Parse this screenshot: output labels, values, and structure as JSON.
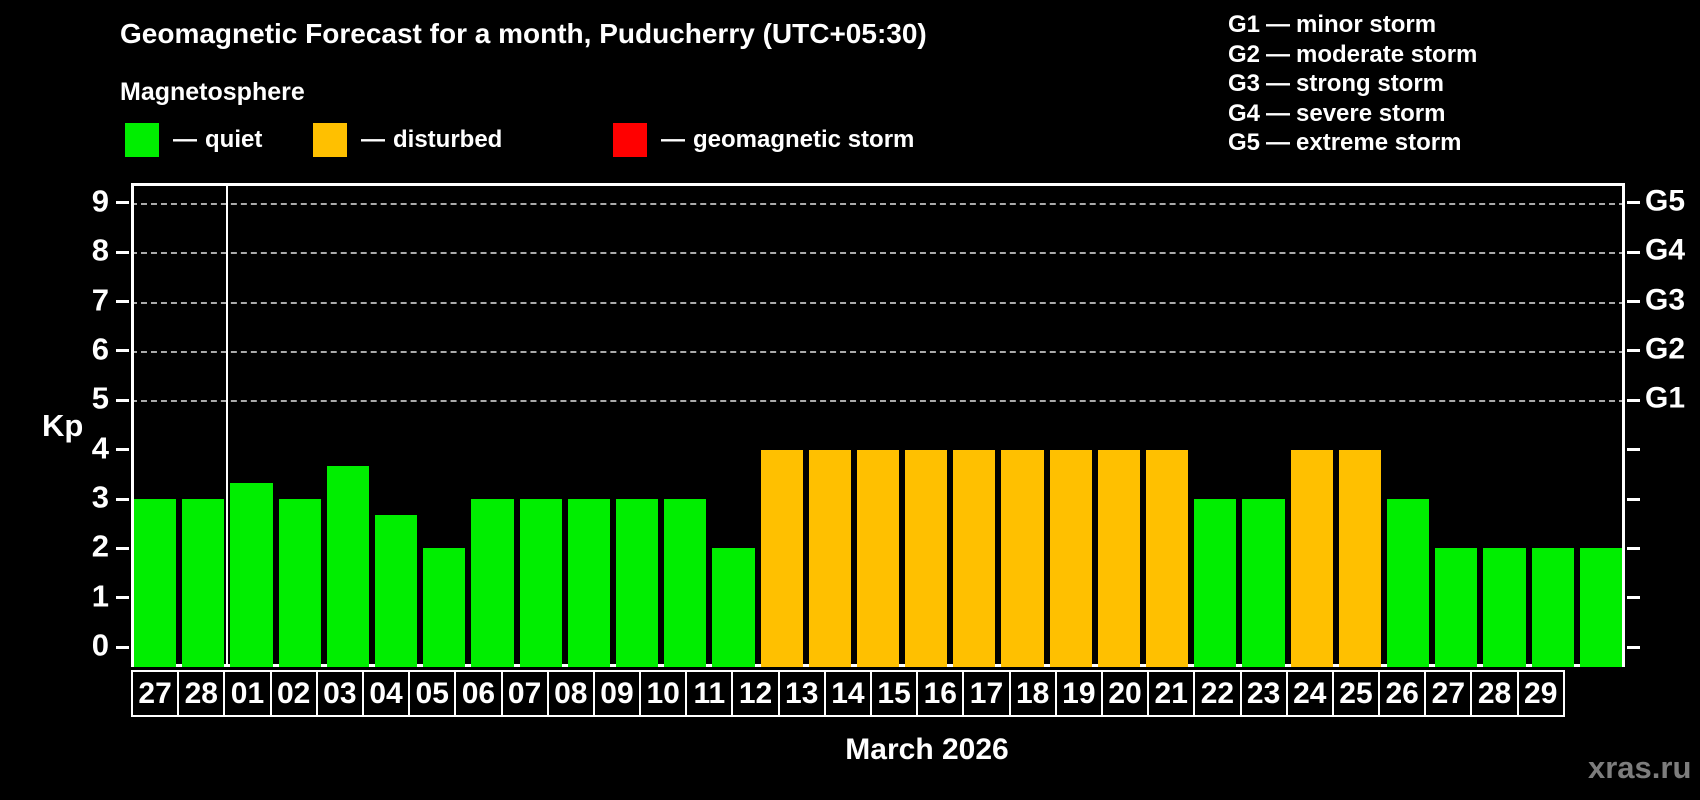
{
  "page": {
    "background": "#000000"
  },
  "header": {
    "title": "Geomagnetic Forecast for a month, Puducherry (UTC+05:30)",
    "subtitle": "Magnetosphere"
  },
  "legend": {
    "dash": "—",
    "items": [
      {
        "name": "quiet",
        "label": "quiet",
        "color": "#00ee00"
      },
      {
        "name": "disturbed",
        "label": "disturbed",
        "color": "#ffc000"
      },
      {
        "name": "geomagnetic-storm",
        "label": "geomagnetic storm",
        "color": "#ff0000"
      }
    ]
  },
  "g_legend": {
    "dash": "—",
    "items": [
      {
        "level": "G1",
        "text": "minor storm"
      },
      {
        "level": "G2",
        "text": "moderate storm"
      },
      {
        "level": "G3",
        "text": "strong storm"
      },
      {
        "level": "G4",
        "text": "severe storm"
      },
      {
        "level": "G5",
        "text": "extreme storm"
      }
    ]
  },
  "chart_data": {
    "type": "bar",
    "title": "Geomagnetic Forecast for a month, Puducherry (UTC+05:30)",
    "xlabel": "March 2026",
    "ylabel": "Kp",
    "kp_axis": {
      "min": -0.4,
      "max": 9.4,
      "ticks": [
        0,
        1,
        2,
        3,
        4,
        5,
        6,
        7,
        8,
        9
      ]
    },
    "gridlines_kp": [
      5,
      6,
      7,
      8,
      9
    ],
    "right_axis": [
      {
        "label": "G1",
        "kp": 5
      },
      {
        "label": "G2",
        "kp": 6
      },
      {
        "label": "G3",
        "kp": 7
      },
      {
        "label": "G4",
        "kp": 8
      },
      {
        "label": "G5",
        "kp": 9
      }
    ],
    "status_colors": {
      "quiet": "#00ee00",
      "disturbed": "#ffc000",
      "storm": "#ff0000"
    },
    "month_boundary_after": 2,
    "categories": [
      "27",
      "28",
      "01",
      "02",
      "03",
      "04",
      "05",
      "06",
      "07",
      "08",
      "09",
      "10",
      "11",
      "12",
      "13",
      "14",
      "15",
      "16",
      "17",
      "18",
      "19",
      "20",
      "21",
      "22",
      "23",
      "24",
      "25",
      "26",
      "27",
      "28",
      "29"
    ],
    "values": [
      3,
      3,
      3.33,
      3,
      3.67,
      2.67,
      2,
      3,
      3,
      3,
      3,
      3,
      2,
      4,
      4,
      4,
      4,
      4,
      4,
      4,
      4,
      4,
      3,
      3,
      4,
      4,
      3,
      2,
      2,
      2,
      2
    ],
    "bars": [
      {
        "day": "27",
        "kp": 3,
        "status": "quiet"
      },
      {
        "day": "28",
        "kp": 3,
        "status": "quiet"
      },
      {
        "day": "01",
        "kp": 3.33,
        "status": "quiet"
      },
      {
        "day": "02",
        "kp": 3,
        "status": "quiet"
      },
      {
        "day": "03",
        "kp": 3.67,
        "status": "quiet"
      },
      {
        "day": "04",
        "kp": 2.67,
        "status": "quiet"
      },
      {
        "day": "05",
        "kp": 2,
        "status": "quiet"
      },
      {
        "day": "06",
        "kp": 3,
        "status": "quiet"
      },
      {
        "day": "07",
        "kp": 3,
        "status": "quiet"
      },
      {
        "day": "08",
        "kp": 3,
        "status": "quiet"
      },
      {
        "day": "09",
        "kp": 3,
        "status": "quiet"
      },
      {
        "day": "10",
        "kp": 3,
        "status": "quiet"
      },
      {
        "day": "11",
        "kp": 2,
        "status": "quiet"
      },
      {
        "day": "12",
        "kp": 4,
        "status": "disturbed"
      },
      {
        "day": "13",
        "kp": 4,
        "status": "disturbed"
      },
      {
        "day": "14",
        "kp": 4,
        "status": "disturbed"
      },
      {
        "day": "15",
        "kp": 4,
        "status": "disturbed"
      },
      {
        "day": "16",
        "kp": 4,
        "status": "disturbed"
      },
      {
        "day": "17",
        "kp": 4,
        "status": "disturbed"
      },
      {
        "day": "18",
        "kp": 4,
        "status": "disturbed"
      },
      {
        "day": "19",
        "kp": 4,
        "status": "disturbed"
      },
      {
        "day": "20",
        "kp": 4,
        "status": "disturbed"
      },
      {
        "day": "21",
        "kp": 3,
        "status": "quiet"
      },
      {
        "day": "22",
        "kp": 3,
        "status": "quiet"
      },
      {
        "day": "23",
        "kp": 4,
        "status": "disturbed"
      },
      {
        "day": "24",
        "kp": 4,
        "status": "disturbed"
      },
      {
        "day": "25",
        "kp": 3,
        "status": "quiet"
      },
      {
        "day": "26",
        "kp": 2,
        "status": "quiet"
      },
      {
        "day": "27",
        "kp": 2,
        "status": "quiet"
      },
      {
        "day": "28",
        "kp": 2,
        "status": "quiet"
      },
      {
        "day": "29",
        "kp": 2,
        "status": "quiet"
      }
    ]
  },
  "footer": {
    "month_label": "March 2026",
    "watermark": "xras.ru"
  }
}
